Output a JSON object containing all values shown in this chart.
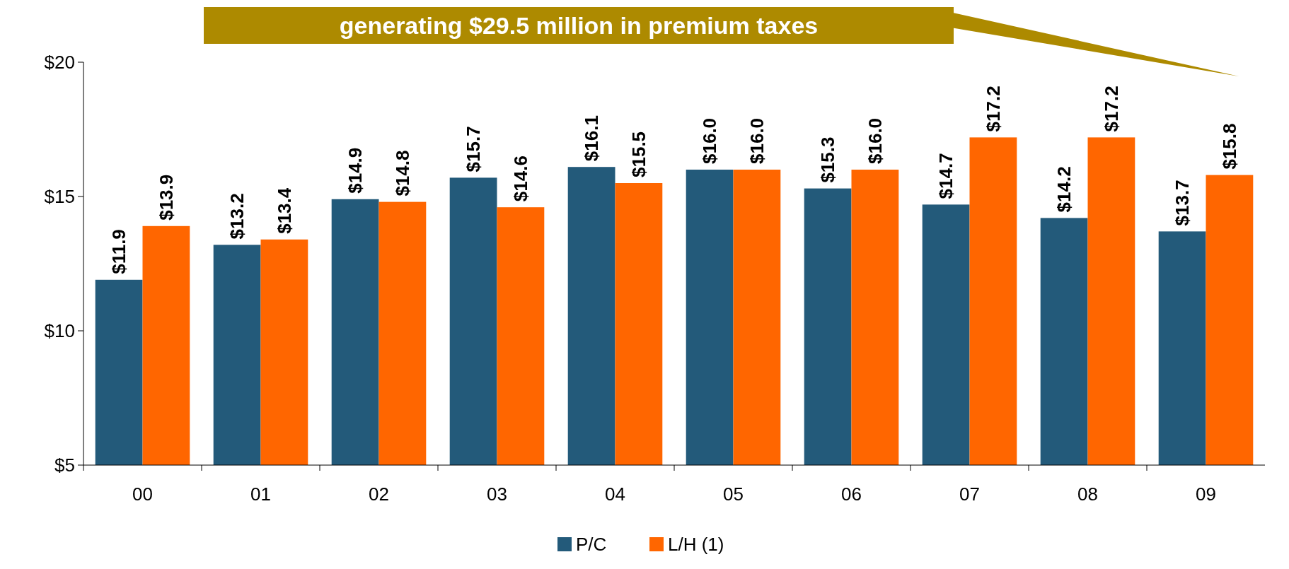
{
  "chart_data": {
    "type": "bar",
    "categories": [
      "00",
      "01",
      "02",
      "03",
      "04",
      "05",
      "06",
      "07",
      "08",
      "09"
    ],
    "series": [
      {
        "name": "P/C",
        "color": "#235a7a",
        "values": [
          11.9,
          13.2,
          14.9,
          15.7,
          16.1,
          16.0,
          15.3,
          14.7,
          14.2,
          13.7
        ],
        "value_labels": [
          "$11.9",
          "$13.2",
          "$14.9",
          "$15.7",
          "$16.1",
          "$16.0",
          "$15.3",
          "$14.7",
          "$14.2",
          "$13.7"
        ]
      },
      {
        "name": "L/H (1)",
        "color": "#ff6600",
        "values": [
          13.9,
          13.4,
          14.8,
          14.6,
          15.5,
          16.0,
          16.0,
          17.2,
          17.2,
          15.8
        ],
        "value_labels": [
          "$13.9",
          "$13.4",
          "$14.8",
          "$14.6",
          "$15.5",
          "$16.0",
          "$16.0",
          "$17.2",
          "$17.2",
          "$15.8"
        ]
      }
    ],
    "ylim": [
      5,
      20
    ],
    "yticks": [
      {
        "value": 5,
        "label": "$5"
      },
      {
        "value": 10,
        "label": "$10"
      },
      {
        "value": 15,
        "label": "$15"
      },
      {
        "value": 20,
        "label": "$20"
      }
    ],
    "legend": "bottom",
    "annotations": [
      "generating $29.5 million in premium taxes"
    ]
  }
}
